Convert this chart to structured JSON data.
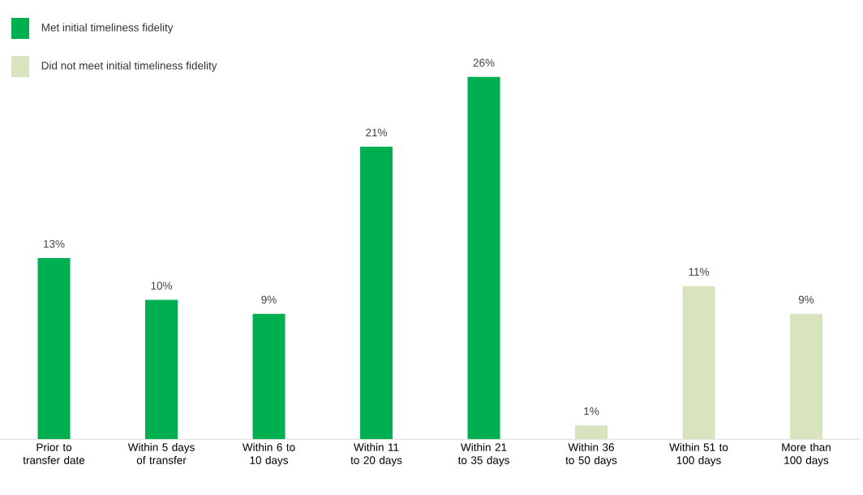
{
  "chart_data": {
    "type": "bar",
    "categories": [
      "Prior to transfer date",
      "Within 5 days of transfer",
      "Within 6 to 10 days",
      "Within 11 to 20 days",
      "Within 21 to 35 days",
      "Within 36 to 50 days",
      "Within 51 to 100 days",
      "More than 100 days"
    ],
    "series": [
      {
        "name": "Met initial timeliness fidelity",
        "color": "#00b050",
        "values": [
          13,
          10,
          9,
          21,
          26,
          null,
          null,
          null
        ],
        "value_labels": [
          "13%",
          "10%",
          "9%",
          "21%",
          "26%",
          null,
          null,
          null
        ]
      },
      {
        "name": "Did not meet initial timeliness fidelity",
        "color": "#d7e4bd",
        "values": [
          null,
          null,
          null,
          null,
          null,
          1,
          11,
          9
        ],
        "value_labels": [
          null,
          null,
          null,
          null,
          null,
          "1%",
          "11%",
          "9%"
        ]
      }
    ],
    "legend": "top left",
    "grid": false
  }
}
